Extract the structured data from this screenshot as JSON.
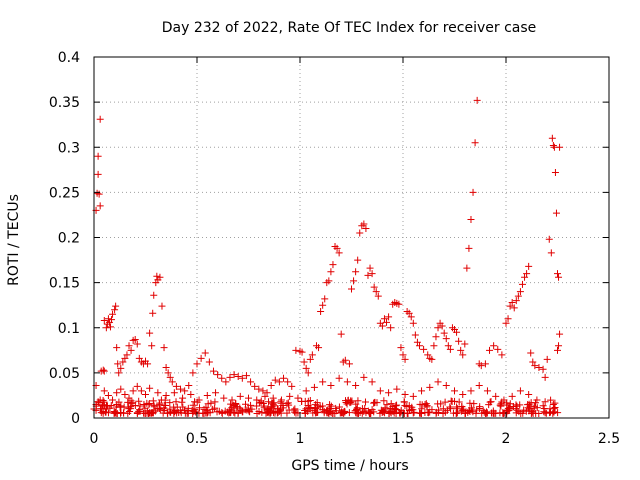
{
  "chart_data": {
    "type": "scatter",
    "title": "Day 232 of 2022, Rate Of TEC Index for receiver case",
    "xlabel": "GPS time / hours",
    "ylabel": "ROTI / TECUs",
    "xlim": [
      0,
      2.5
    ],
    "ylim": [
      0,
      0.4
    ],
    "xticks": [
      0,
      0.5,
      1,
      1.5,
      2,
      2.5
    ],
    "xtick_labels": [
      "0",
      "0.5",
      "1",
      "1.5",
      "2",
      "2.5"
    ],
    "yticks": [
      0,
      0.05,
      0.1,
      0.15,
      0.2,
      0.25,
      0.3,
      0.35,
      0.4
    ],
    "ytick_labels": [
      "0",
      "0.05",
      "0.1",
      "0.15",
      "0.2",
      "0.25",
      "0.3",
      "0.35",
      "0.4"
    ],
    "grid": true,
    "marker": "+",
    "color": "#e00000",
    "series": [
      {
        "name": "ROTI",
        "points": [
          [
            0.0,
            0.01
          ],
          [
            0.01,
            0.015
          ],
          [
            0.01,
            0.036
          ],
          [
            0.01,
            0.23
          ],
          [
            0.015,
            0.249
          ],
          [
            0.02,
            0.27
          ],
          [
            0.02,
            0.29
          ],
          [
            0.025,
            0.248
          ],
          [
            0.03,
            0.331
          ],
          [
            0.03,
            0.235
          ],
          [
            0.02,
            0.018
          ],
          [
            0.03,
            0.02
          ],
          [
            0.04,
            0.014
          ],
          [
            0.035,
            0.052
          ],
          [
            0.045,
            0.053
          ],
          [
            0.05,
            0.052
          ],
          [
            0.05,
            0.108
          ],
          [
            0.06,
            0.1
          ],
          [
            0.065,
            0.104
          ],
          [
            0.07,
            0.11
          ],
          [
            0.075,
            0.106
          ],
          [
            0.08,
            0.101
          ],
          [
            0.085,
            0.109
          ],
          [
            0.09,
            0.115
          ],
          [
            0.1,
            0.12
          ],
          [
            0.105,
            0.124
          ],
          [
            0.11,
            0.078
          ],
          [
            0.115,
            0.06
          ],
          [
            0.12,
            0.05
          ],
          [
            0.13,
            0.055
          ],
          [
            0.14,
            0.062
          ],
          [
            0.15,
            0.066
          ],
          [
            0.16,
            0.07
          ],
          [
            0.17,
            0.08
          ],
          [
            0.18,
            0.075
          ],
          [
            0.19,
            0.086
          ],
          [
            0.2,
            0.087
          ],
          [
            0.21,
            0.082
          ],
          [
            0.22,
            0.066
          ],
          [
            0.23,
            0.062
          ],
          [
            0.24,
            0.06
          ],
          [
            0.25,
            0.063
          ],
          [
            0.26,
            0.06
          ],
          [
            0.27,
            0.094
          ],
          [
            0.28,
            0.08
          ],
          [
            0.285,
            0.116
          ],
          [
            0.29,
            0.136
          ],
          [
            0.3,
            0.15
          ],
          [
            0.305,
            0.157
          ],
          [
            0.31,
            0.153
          ],
          [
            0.32,
            0.156
          ],
          [
            0.33,
            0.124
          ],
          [
            0.34,
            0.078
          ],
          [
            0.35,
            0.056
          ],
          [
            0.36,
            0.05
          ],
          [
            0.37,
            0.045
          ],
          [
            0.38,
            0.04
          ],
          [
            0.4,
            0.035
          ],
          [
            0.42,
            0.032
          ],
          [
            0.44,
            0.03
          ],
          [
            0.46,
            0.036
          ],
          [
            0.48,
            0.05
          ],
          [
            0.5,
            0.06
          ],
          [
            0.52,
            0.066
          ],
          [
            0.54,
            0.072
          ],
          [
            0.56,
            0.062
          ],
          [
            0.58,
            0.052
          ],
          [
            0.6,
            0.048
          ],
          [
            0.62,
            0.044
          ],
          [
            0.64,
            0.04
          ],
          [
            0.66,
            0.045
          ],
          [
            0.68,
            0.048
          ],
          [
            0.7,
            0.046
          ],
          [
            0.72,
            0.044
          ],
          [
            0.74,
            0.047
          ],
          [
            0.76,
            0.04
          ],
          [
            0.78,
            0.035
          ],
          [
            0.8,
            0.032
          ],
          [
            0.82,
            0.03
          ],
          [
            0.84,
            0.028
          ],
          [
            0.86,
            0.036
          ],
          [
            0.88,
            0.042
          ],
          [
            0.9,
            0.04
          ],
          [
            0.92,
            0.044
          ],
          [
            0.94,
            0.04
          ],
          [
            0.96,
            0.035
          ],
          [
            0.98,
            0.075
          ],
          [
            1.0,
            0.074
          ],
          [
            1.01,
            0.073
          ],
          [
            1.02,
            0.062
          ],
          [
            1.03,
            0.055
          ],
          [
            1.04,
            0.05
          ],
          [
            1.05,
            0.065
          ],
          [
            1.06,
            0.07
          ],
          [
            1.08,
            0.08
          ],
          [
            1.09,
            0.078
          ],
          [
            1.1,
            0.118
          ],
          [
            1.11,
            0.125
          ],
          [
            1.12,
            0.132
          ],
          [
            1.13,
            0.15
          ],
          [
            1.14,
            0.152
          ],
          [
            1.15,
            0.162
          ],
          [
            1.16,
            0.17
          ],
          [
            1.17,
            0.19
          ],
          [
            1.18,
            0.188
          ],
          [
            1.19,
            0.183
          ],
          [
            1.2,
            0.093
          ],
          [
            1.21,
            0.062
          ],
          [
            1.22,
            0.064
          ],
          [
            1.24,
            0.06
          ],
          [
            1.25,
            0.143
          ],
          [
            1.26,
            0.152
          ],
          [
            1.27,
            0.162
          ],
          [
            1.28,
            0.175
          ],
          [
            1.29,
            0.205
          ],
          [
            1.3,
            0.213
          ],
          [
            1.31,
            0.215
          ],
          [
            1.32,
            0.21
          ],
          [
            1.33,
            0.158
          ],
          [
            1.34,
            0.166
          ],
          [
            1.35,
            0.16
          ],
          [
            1.36,
            0.145
          ],
          [
            1.37,
            0.14
          ],
          [
            1.38,
            0.135
          ],
          [
            1.39,
            0.105
          ],
          [
            1.4,
            0.102
          ],
          [
            1.41,
            0.11
          ],
          [
            1.42,
            0.106
          ],
          [
            1.43,
            0.112
          ],
          [
            1.44,
            0.1
          ],
          [
            1.45,
            0.126
          ],
          [
            1.46,
            0.128
          ],
          [
            1.47,
            0.127
          ],
          [
            1.48,
            0.126
          ],
          [
            1.49,
            0.078
          ],
          [
            1.5,
            0.07
          ],
          [
            1.51,
            0.065
          ],
          [
            1.52,
            0.118
          ],
          [
            1.53,
            0.116
          ],
          [
            1.54,
            0.112
          ],
          [
            1.55,
            0.105
          ],
          [
            1.56,
            0.092
          ],
          [
            1.57,
            0.084
          ],
          [
            1.58,
            0.08
          ],
          [
            1.6,
            0.076
          ],
          [
            1.62,
            0.07
          ],
          [
            1.63,
            0.066
          ],
          [
            1.64,
            0.065
          ],
          [
            1.65,
            0.08
          ],
          [
            1.66,
            0.09
          ],
          [
            1.67,
            0.1
          ],
          [
            1.68,
            0.105
          ],
          [
            1.69,
            0.102
          ],
          [
            1.7,
            0.094
          ],
          [
            1.71,
            0.088
          ],
          [
            1.72,
            0.08
          ],
          [
            1.73,
            0.076
          ],
          [
            1.74,
            0.1
          ],
          [
            1.75,
            0.098
          ],
          [
            1.76,
            0.095
          ],
          [
            1.77,
            0.085
          ],
          [
            1.78,
            0.075
          ],
          [
            1.79,
            0.07
          ],
          [
            1.8,
            0.082
          ],
          [
            1.81,
            0.166
          ],
          [
            1.82,
            0.188
          ],
          [
            1.83,
            0.22
          ],
          [
            1.84,
            0.25
          ],
          [
            1.85,
            0.305
          ],
          [
            1.86,
            0.352
          ],
          [
            1.87,
            0.06
          ],
          [
            1.88,
            0.058
          ],
          [
            1.9,
            0.06
          ],
          [
            1.92,
            0.075
          ],
          [
            1.94,
            0.08
          ],
          [
            1.96,
            0.076
          ],
          [
            1.98,
            0.07
          ],
          [
            2.0,
            0.105
          ],
          [
            2.01,
            0.11
          ],
          [
            2.02,
            0.124
          ],
          [
            2.03,
            0.128
          ],
          [
            2.04,
            0.122
          ],
          [
            2.05,
            0.13
          ],
          [
            2.06,
            0.135
          ],
          [
            2.07,
            0.14
          ],
          [
            2.08,
            0.148
          ],
          [
            2.09,
            0.156
          ],
          [
            2.1,
            0.16
          ],
          [
            2.11,
            0.168
          ],
          [
            2.12,
            0.072
          ],
          [
            2.13,
            0.062
          ],
          [
            2.14,
            0.058
          ],
          [
            2.16,
            0.056
          ],
          [
            2.18,
            0.054
          ],
          [
            2.19,
            0.045
          ],
          [
            2.2,
            0.065
          ],
          [
            2.21,
            0.198
          ],
          [
            2.22,
            0.183
          ],
          [
            2.225,
            0.31
          ],
          [
            2.23,
            0.302
          ],
          [
            2.235,
            0.3
          ],
          [
            2.24,
            0.272
          ],
          [
            2.245,
            0.227
          ],
          [
            2.25,
            0.16
          ],
          [
            2.255,
            0.156
          ],
          [
            2.26,
            0.3
          ],
          [
            2.26,
            0.093
          ],
          [
            2.255,
            0.08
          ],
          [
            2.25,
            0.075
          ],
          [
            0.05,
            0.03
          ],
          [
            0.07,
            0.025
          ],
          [
            0.09,
            0.02
          ],
          [
            0.11,
            0.028
          ],
          [
            0.13,
            0.032
          ],
          [
            0.15,
            0.026
          ],
          [
            0.17,
            0.022
          ],
          [
            0.19,
            0.03
          ],
          [
            0.21,
            0.035
          ],
          [
            0.23,
            0.03
          ],
          [
            0.25,
            0.026
          ],
          [
            0.27,
            0.033
          ],
          [
            0.31,
            0.028
          ],
          [
            0.35,
            0.025
          ],
          [
            0.39,
            0.028
          ],
          [
            0.43,
            0.022
          ],
          [
            0.47,
            0.026
          ],
          [
            0.51,
            0.02
          ],
          [
            0.55,
            0.025
          ],
          [
            0.59,
            0.028
          ],
          [
            0.63,
            0.022
          ],
          [
            0.67,
            0.02
          ],
          [
            0.71,
            0.024
          ],
          [
            0.75,
            0.022
          ],
          [
            0.79,
            0.02
          ],
          [
            0.83,
            0.024
          ],
          [
            0.87,
            0.022
          ],
          [
            0.91,
            0.02
          ],
          [
            0.95,
            0.024
          ],
          [
            0.99,
            0.022
          ],
          [
            1.03,
            0.03
          ],
          [
            1.07,
            0.034
          ],
          [
            1.11,
            0.04
          ],
          [
            1.15,
            0.036
          ],
          [
            1.19,
            0.044
          ],
          [
            1.23,
            0.04
          ],
          [
            1.27,
            0.036
          ],
          [
            1.31,
            0.045
          ],
          [
            1.35,
            0.04
          ],
          [
            1.39,
            0.03
          ],
          [
            1.43,
            0.028
          ],
          [
            1.47,
            0.032
          ],
          [
            1.51,
            0.026
          ],
          [
            1.55,
            0.024
          ],
          [
            1.59,
            0.03
          ],
          [
            1.63,
            0.034
          ],
          [
            1.67,
            0.04
          ],
          [
            1.71,
            0.036
          ],
          [
            1.75,
            0.03
          ],
          [
            1.79,
            0.026
          ],
          [
            1.83,
            0.03
          ],
          [
            1.87,
            0.036
          ],
          [
            1.91,
            0.03
          ],
          [
            1.95,
            0.024
          ],
          [
            1.99,
            0.02
          ],
          [
            2.03,
            0.024
          ],
          [
            2.07,
            0.03
          ],
          [
            2.11,
            0.026
          ],
          [
            2.15,
            0.02
          ],
          [
            2.19,
            0.018
          ],
          [
            2.23,
            0.015
          ]
        ]
      }
    ],
    "noise_band": {
      "description": "Dense cluster of low ROTI values along the bottom across the full time span",
      "x_range": [
        0.0,
        2.26
      ],
      "y_range": [
        0.005,
        0.02
      ],
      "samples": 520
    }
  }
}
